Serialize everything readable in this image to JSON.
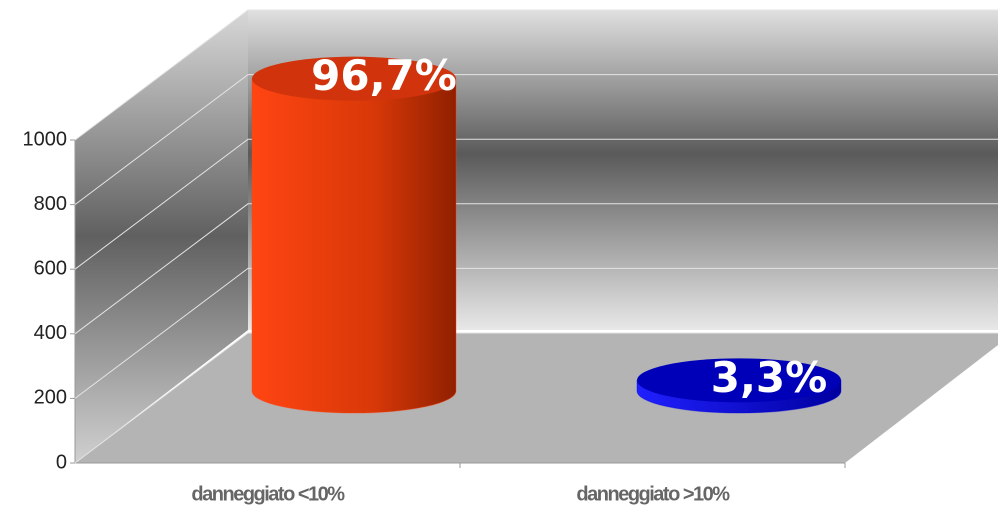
{
  "chart_data": {
    "type": "bar3d",
    "categories": [
      "danneggiato <10%",
      "danneggiato >10%"
    ],
    "values": [
      967,
      33
    ],
    "data_labels": [
      "96,7%",
      "3,3%"
    ],
    "colors": [
      "#ff4010",
      "#0000e0"
    ],
    "ylim": [
      0,
      1000
    ],
    "yticks": [
      0,
      200,
      400,
      600,
      800,
      1000
    ],
    "grid": true
  }
}
